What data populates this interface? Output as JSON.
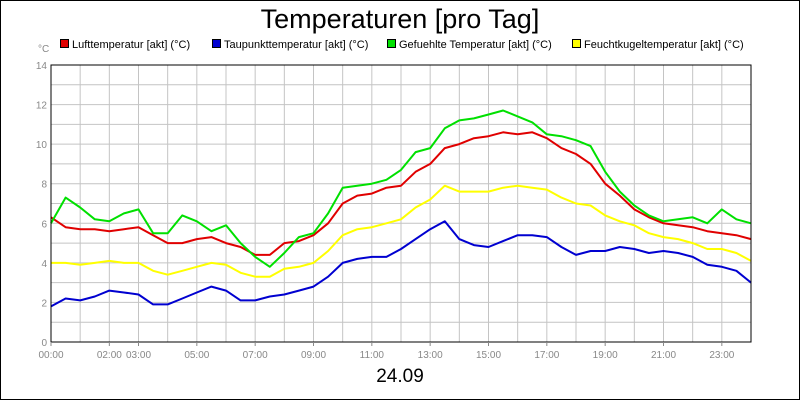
{
  "chart_data": {
    "type": "line",
    "title": "Temperaturen [pro Tag]",
    "ylabel": "°C",
    "xlabel": "24.09",
    "ylim": [
      0,
      14
    ],
    "yticks": [
      0,
      2,
      4,
      6,
      8,
      10,
      12,
      14
    ],
    "xlim": [
      0,
      24
    ],
    "xtick_labels": [
      "00:00",
      "02:00",
      "03:00",
      "05:00",
      "07:00",
      "09:00",
      "11:00",
      "13:00",
      "15:00",
      "17:00",
      "19:00",
      "21:00",
      "23:00"
    ],
    "xtick_positions": [
      0,
      2,
      3,
      5,
      7,
      9,
      11,
      13,
      15,
      17,
      19,
      21,
      23
    ],
    "grid": true,
    "legend_position": "top",
    "x": [
      0,
      0.5,
      1,
      1.5,
      2,
      2.5,
      3,
      3.5,
      4,
      4.5,
      5,
      5.5,
      6,
      6.5,
      7,
      7.5,
      8,
      8.5,
      9,
      9.5,
      10,
      10.5,
      11,
      11.5,
      12,
      12.5,
      13,
      13.5,
      14,
      14.5,
      15,
      15.5,
      16,
      16.5,
      17,
      17.5,
      18,
      18.5,
      19,
      19.5,
      20,
      20.5,
      21,
      21.5,
      22,
      22.5,
      23,
      23.5,
      24
    ],
    "series": [
      {
        "name": "Lufttemperatur [akt] (°C)",
        "color": "#e00000",
        "values": [
          6.3,
          5.8,
          5.7,
          5.7,
          5.6,
          5.7,
          5.8,
          5.4,
          5.0,
          5.0,
          5.2,
          5.3,
          5.0,
          4.8,
          4.4,
          4.4,
          5.0,
          5.1,
          5.4,
          6.0,
          7.0,
          7.4,
          7.5,
          7.8,
          7.9,
          8.6,
          9.0,
          9.8,
          10.0,
          10.3,
          10.4,
          10.6,
          10.5,
          10.6,
          10.3,
          9.8,
          9.5,
          9.0,
          8.0,
          7.4,
          6.7,
          6.3,
          6.0,
          5.9,
          5.8,
          5.6,
          5.5,
          5.4,
          5.2
        ]
      },
      {
        "name": "Taupunkttemperatur [akt] (°C)",
        "color": "#0000d0",
        "values": [
          1.8,
          2.2,
          2.1,
          2.3,
          2.6,
          2.5,
          2.4,
          1.9,
          1.9,
          2.2,
          2.5,
          2.8,
          2.6,
          2.1,
          2.1,
          2.3,
          2.4,
          2.6,
          2.8,
          3.3,
          4.0,
          4.2,
          4.3,
          4.3,
          4.7,
          5.2,
          5.7,
          6.1,
          5.2,
          4.9,
          4.8,
          5.1,
          5.4,
          5.4,
          5.3,
          4.8,
          4.4,
          4.6,
          4.6,
          4.8,
          4.7,
          4.5,
          4.6,
          4.5,
          4.3,
          3.9,
          3.8,
          3.6,
          3.0
        ]
      },
      {
        "name": "Gefuehlte Temperatur [akt] (°C)",
        "color": "#00e000",
        "values": [
          6.0,
          7.3,
          6.8,
          6.2,
          6.1,
          6.5,
          6.7,
          5.5,
          5.5,
          6.4,
          6.1,
          5.6,
          5.9,
          5.0,
          4.3,
          3.8,
          4.5,
          5.3,
          5.5,
          6.5,
          7.8,
          7.9,
          8.0,
          8.2,
          8.7,
          9.6,
          9.8,
          10.8,
          11.2,
          11.3,
          11.5,
          11.7,
          11.4,
          11.1,
          10.5,
          10.4,
          10.2,
          9.9,
          8.6,
          7.6,
          6.9,
          6.4,
          6.1,
          6.2,
          6.3,
          6.0,
          6.7,
          6.2,
          6.0
        ]
      },
      {
        "name": "Feuchtkugeltemperatur [akt] (°C)",
        "color": "#ffff00",
        "values": [
          4.0,
          4.0,
          3.9,
          4.0,
          4.1,
          4.0,
          4.0,
          3.6,
          3.4,
          3.6,
          3.8,
          4.0,
          3.9,
          3.5,
          3.3,
          3.3,
          3.7,
          3.8,
          4.0,
          4.6,
          5.4,
          5.7,
          5.8,
          6.0,
          6.2,
          6.8,
          7.2,
          7.9,
          7.6,
          7.6,
          7.6,
          7.8,
          7.9,
          7.8,
          7.7,
          7.3,
          7.0,
          6.9,
          6.4,
          6.1,
          5.9,
          5.5,
          5.3,
          5.2,
          5.0,
          4.7,
          4.7,
          4.5,
          4.1
        ]
      }
    ]
  }
}
